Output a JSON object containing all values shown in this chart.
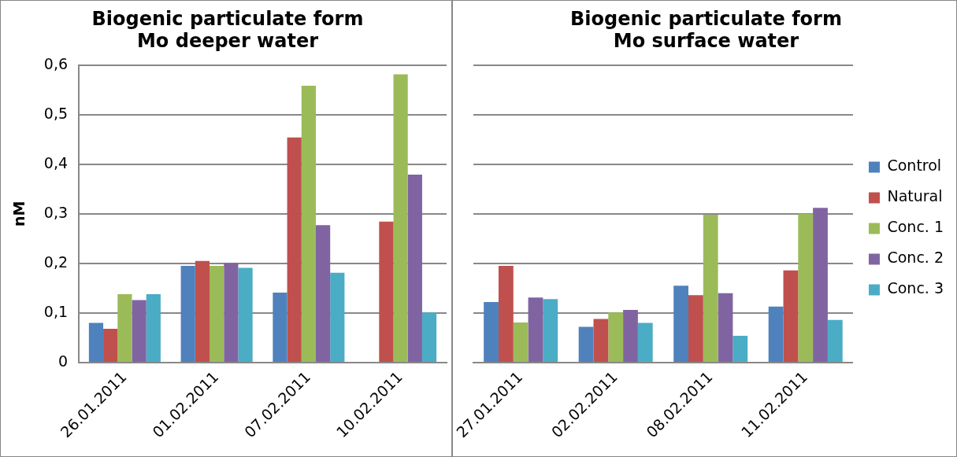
{
  "chart_data": [
    {
      "type": "bar",
      "title": "Biogenic particulate form\nMo deeper water",
      "ylabel": "nM",
      "categories": [
        "26.01.2011",
        "01.02.2011",
        "07.02.2011",
        "10.02.2011"
      ],
      "series": [
        {
          "color": "#4f81bd",
          "values": [
            0.08,
            0.195,
            0.141,
            null
          ]
        },
        {
          "color": "#c0504d",
          "values": [
            0.068,
            0.205,
            0.454,
            0.284
          ]
        },
        {
          "color": "#9bbb59",
          "values": [
            0.138,
            0.195,
            0.558,
            0.581
          ]
        },
        {
          "color": "#8064a2",
          "values": [
            0.126,
            0.201,
            0.277,
            0.379
          ]
        },
        {
          "color": "#4bacc6",
          "values": [
            0.138,
            0.191,
            0.181,
            0.101
          ]
        }
      ],
      "ylim": [
        0,
        0.6
      ],
      "yticks": [
        0,
        {
          "value": 0.1,
          "label": "0,1"
        },
        {
          "value": 0.2,
          "label": "0,2"
        },
        {
          "value": 0.3,
          "label": "0,3"
        },
        {
          "value": 0.4,
          "label": "0,4"
        },
        {
          "value": 0.5,
          "label": "0,5"
        },
        {
          "value": 0.6,
          "label": "0,6"
        }
      ],
      "grid": "y"
    },
    {
      "type": "bar",
      "title": "Biogenic particulate form\nMo surface water",
      "categories": [
        "27.01.2011",
        "02.02.2011",
        "08.02.2011",
        "11.02.2011"
      ],
      "series": [
        {
          "name": "Control",
          "color": "#4f81bd",
          "values": [
            0.122,
            0.072,
            0.155,
            0.113
          ]
        },
        {
          "name": "Natural",
          "color": "#c0504d",
          "values": [
            0.195,
            0.088,
            0.136,
            0.186
          ]
        },
        {
          "name": "Conc. 1",
          "color": "#9bbb59",
          "values": [
            0.081,
            0.101,
            0.298,
            0.3
          ]
        },
        {
          "name": "Conc. 2",
          "color": "#8064a2",
          "values": [
            0.131,
            0.106,
            0.14,
            0.312
          ]
        },
        {
          "name": "Conc. 3",
          "color": "#4bacc6",
          "values": [
            0.128,
            0.08,
            0.054,
            0.086
          ]
        }
      ],
      "ylim": [
        0,
        0.6
      ],
      "yticks": [
        0,
        0.1,
        0.2,
        0.3,
        0.4,
        0.5,
        0.6
      ],
      "grid": "y",
      "legend": "right",
      "tick_labels": "x"
    }
  ]
}
